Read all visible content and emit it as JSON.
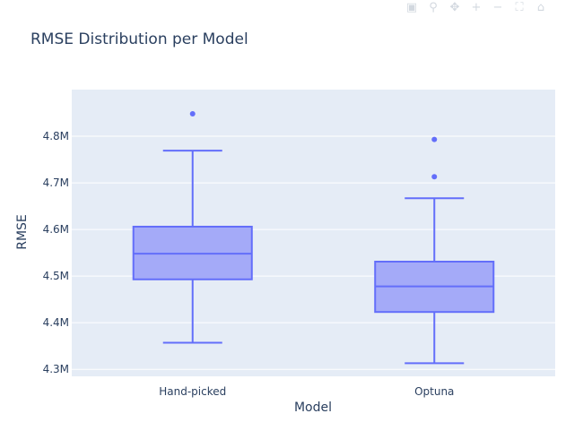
{
  "chart_data": {
    "type": "box",
    "title": "RMSE Distribution per Model",
    "xlabel": "Model",
    "ylabel": "RMSE",
    "categories": [
      "Hand-picked",
      "Optuna"
    ],
    "ylim": [
      4.285,
      4.9
    ],
    "yticks": [
      {
        "value": 4.3,
        "label": "4.3M"
      },
      {
        "value": 4.4,
        "label": "4.4M"
      },
      {
        "value": 4.5,
        "label": "4.5M"
      },
      {
        "value": 4.6,
        "label": "4.6M"
      },
      {
        "value": 4.7,
        "label": "4.7M"
      },
      {
        "value": 4.8,
        "label": "4.8M"
      }
    ],
    "boxes": [
      {
        "category": "Hand-picked",
        "lower_fence": 4.357,
        "q1": 4.493,
        "median": 4.548,
        "q3": 4.606,
        "upper_fence": 4.769,
        "outliers": [
          4.848
        ]
      },
      {
        "category": "Optuna",
        "lower_fence": 4.313,
        "q1": 4.423,
        "median": 4.478,
        "q3": 4.531,
        "upper_fence": 4.667,
        "outliers": [
          4.713,
          4.793
        ]
      }
    ],
    "grid": true,
    "colors": {
      "box_line": "#636efa",
      "box_fill": "#a4aaf8",
      "plot_bg": "#e5ecf6",
      "grid": "#ffffff",
      "text": "#2a3f5f"
    }
  },
  "modebar": {
    "icons": [
      "camera-icon",
      "zoom-icon",
      "pan-icon",
      "zoom-in-icon",
      "zoom-out-icon",
      "autoscale-icon",
      "reset-icon"
    ]
  }
}
